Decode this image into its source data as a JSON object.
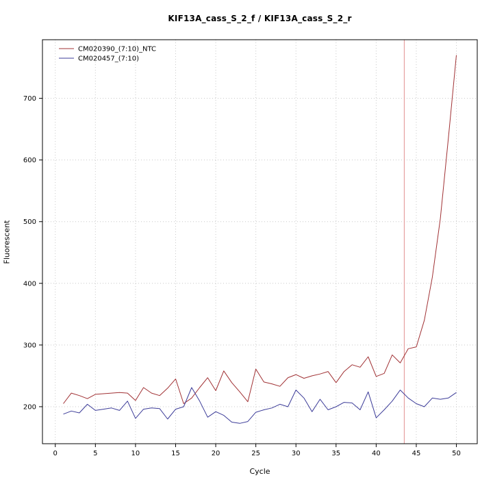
{
  "page": {
    "background": "#ffffff"
  },
  "chart_data": {
    "type": "line",
    "title": "KIF13A_cass_S_2_f / KIF13A_cass_S_2_r",
    "xlabel": "Cycle",
    "ylabel": "Fluorescent",
    "x_ticks": [
      0,
      5,
      10,
      15,
      20,
      25,
      30,
      35,
      40,
      45,
      50
    ],
    "y_ticks": [
      200,
      300,
      400,
      500,
      600,
      700
    ],
    "xlim": [
      -1.6,
      52.6
    ],
    "ylim": [
      140,
      795
    ],
    "grid": "dotted",
    "grid_color": "#c8c8c8",
    "box_color": "#000000",
    "legend_position": "top-left",
    "x_start": 1,
    "series": [
      {
        "name": "CM020390_(7:10)_NTC",
        "color": "#a03033",
        "values": [
          205,
          222,
          218,
          213,
          220,
          221,
          222,
          223,
          222,
          210,
          231,
          222,
          218,
          230,
          245,
          205,
          214,
          231,
          247,
          226,
          258,
          239,
          224,
          208,
          261,
          240,
          237,
          233,
          247,
          252,
          246,
          250,
          253,
          257,
          239,
          257,
          268,
          264,
          281,
          249,
          254,
          284,
          271,
          294,
          297,
          340,
          410,
          505,
          635,
          770
        ]
      },
      {
        "name": "CM020457_(7:10)",
        "color": "#3b3b98",
        "values": [
          188,
          193,
          190,
          204,
          194,
          196,
          198,
          194,
          209,
          181,
          196,
          198,
          197,
          180,
          196,
          200,
          231,
          209,
          183,
          192,
          186,
          175,
          173,
          176,
          191,
          195,
          198,
          204,
          200,
          227,
          214,
          192,
          212,
          195,
          200,
          207,
          206,
          195,
          224,
          182,
          195,
          209,
          227,
          214,
          205,
          200,
          214,
          212,
          214,
          223
        ]
      }
    ],
    "vline": {
      "x": 43.5,
      "color": "#e09090"
    }
  }
}
